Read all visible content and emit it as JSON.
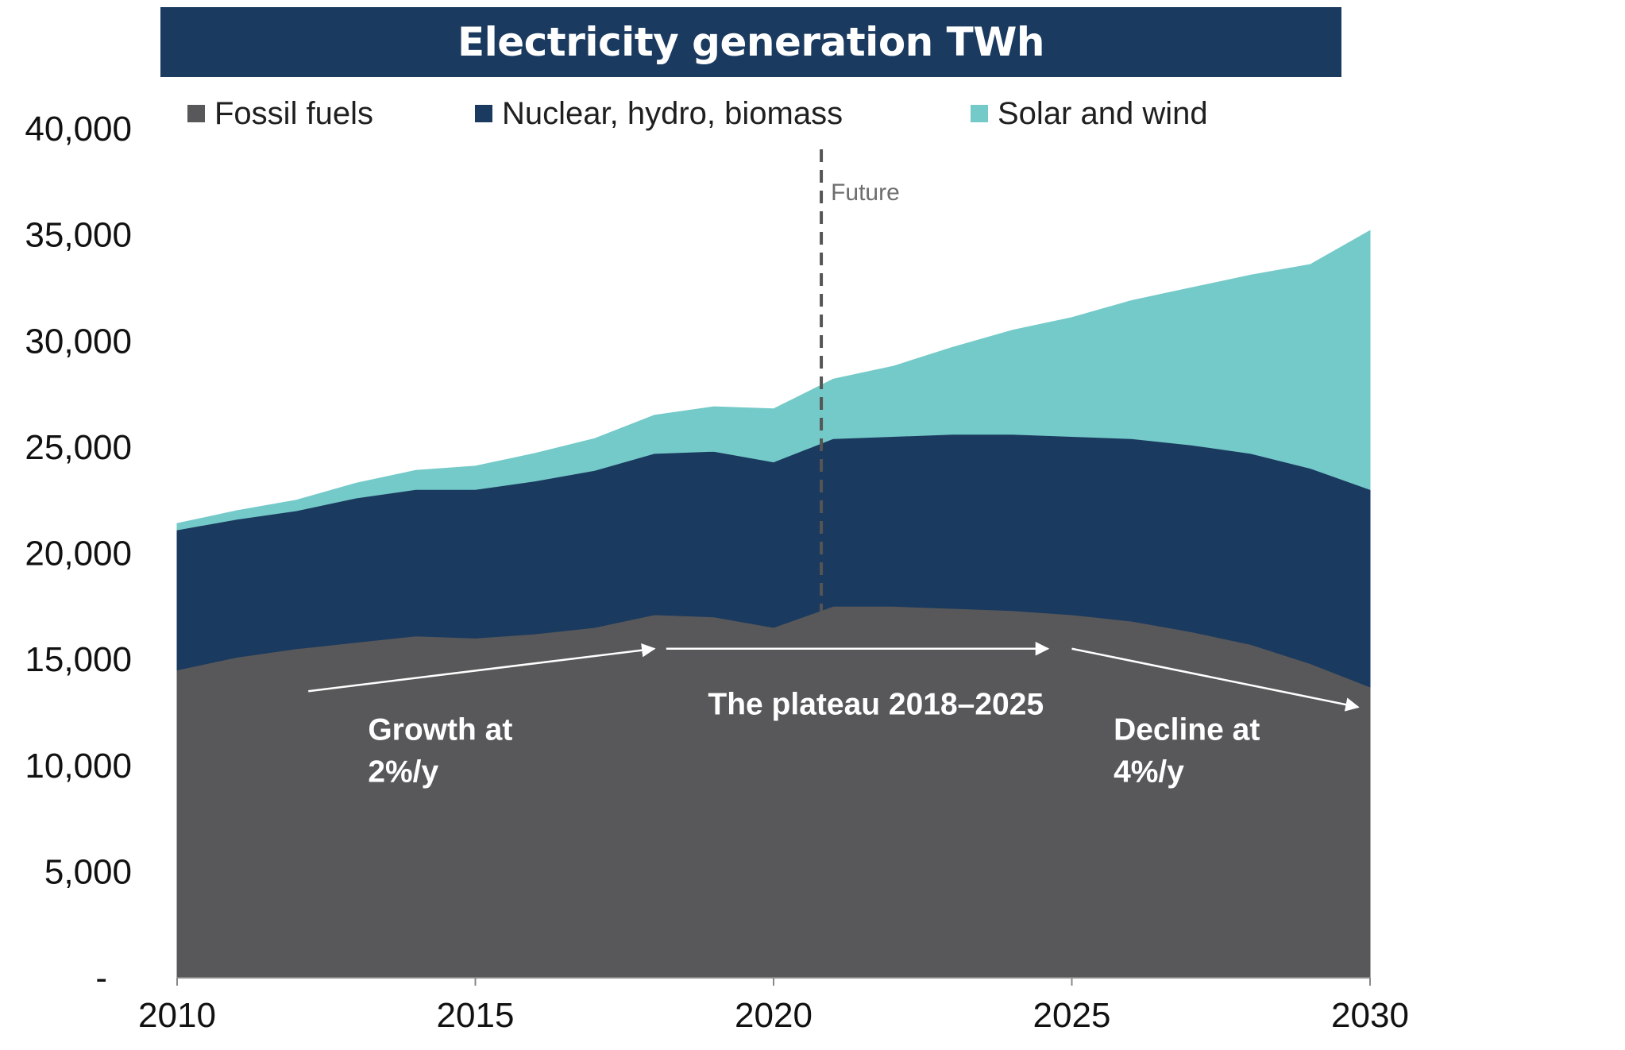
{
  "chart_data": {
    "type": "area",
    "stacked": true,
    "title": "Electricity generation TWh",
    "x": [
      2010,
      2011,
      2012,
      2013,
      2014,
      2015,
      2016,
      2017,
      2018,
      2019,
      2020,
      2021,
      2022,
      2023,
      2024,
      2025,
      2026,
      2027,
      2028,
      2029,
      2030
    ],
    "series": [
      {
        "name": "Fossil fuels",
        "color": "#58585a",
        "values": [
          14500,
          15100,
          15500,
          15800,
          16100,
          16000,
          16200,
          16500,
          17100,
          17000,
          16500,
          17500,
          17500,
          17400,
          17300,
          17100,
          16800,
          16300,
          15700,
          14800,
          13700
        ]
      },
      {
        "name": "Nuclear, hydro, biomass",
        "color": "#1b3a5f",
        "values": [
          6600,
          6500,
          6500,
          6800,
          6900,
          7000,
          7200,
          7400,
          7600,
          7800,
          7800,
          7900,
          8000,
          8200,
          8300,
          8400,
          8600,
          8800,
          9000,
          9200,
          9300
        ]
      },
      {
        "name": "Solar and wind",
        "color": "#74cac8",
        "values": [
          300,
          400,
          500,
          700,
          900,
          1100,
          1300,
          1500,
          1800,
          2100,
          2500,
          2800,
          3300,
          4100,
          4900,
          5600,
          6500,
          7400,
          8400,
          9600,
          12200
        ]
      }
    ],
    "xlim": [
      2010,
      2030
    ],
    "ylim": [
      0,
      40000
    ],
    "y_ticks": [
      {
        "value": 0,
        "label": "-"
      },
      {
        "value": 5000,
        "label": "5,000"
      },
      {
        "value": 10000,
        "label": "10,000"
      },
      {
        "value": 15000,
        "label": "15,000"
      },
      {
        "value": 20000,
        "label": "20,000"
      },
      {
        "value": 25000,
        "label": "25,000"
      },
      {
        "value": 30000,
        "label": "30,000"
      },
      {
        "value": 35000,
        "label": "35,000"
      },
      {
        "value": 40000,
        "label": "40,000"
      }
    ],
    "x_ticks": [
      {
        "value": 2010,
        "label": "2010"
      },
      {
        "value": 2015,
        "label": "2015"
      },
      {
        "value": 2020,
        "label": "2020"
      },
      {
        "value": 2025,
        "label": "2025"
      },
      {
        "value": 2030,
        "label": "2030"
      }
    ],
    "legend_position": "top",
    "grid": false,
    "future_marker": {
      "x": 2020.8,
      "label": "Future"
    },
    "annotations": [
      {
        "lines": [
          "Growth at",
          "2%/y"
        ],
        "x": 2013.2,
        "y": 11200,
        "arrow": {
          "from": [
            2012.2,
            13500
          ],
          "to": [
            2018.0,
            15500
          ]
        }
      },
      {
        "lines": [
          "The plateau 2018–2025"
        ],
        "x": 2018.9,
        "y": 12400,
        "arrow": {
          "from": [
            2018.2,
            15500
          ],
          "to": [
            2024.6,
            15500
          ]
        }
      },
      {
        "lines": [
          "Decline at",
          "4%/y"
        ],
        "x": 2025.7,
        "y": 11200,
        "arrow": {
          "from": [
            2025.0,
            15500
          ],
          "to": [
            2029.8,
            12750
          ]
        }
      }
    ]
  }
}
